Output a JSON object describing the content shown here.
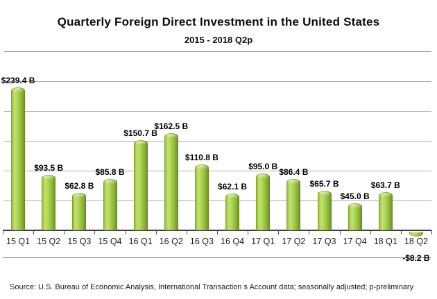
{
  "title": "Quarterly Foreign Direct Investment in the United States",
  "subtitle": "2015 - 2018 Q2p",
  "source": "Source:  U.S. Bureau of Economic Analysis, International Transaction s Account data; seasonally adjusted; p-preliminary",
  "colors": {
    "bar_main": "#9CC83E",
    "bar_highlight": "#C3E172",
    "bar_edge_dark": "#688D24",
    "gridline": "#ADADAD",
    "axis": "#3F3F3F",
    "text": "#000000"
  },
  "chart_data": {
    "type": "bar",
    "title": "Quarterly Foreign Direct Investment in the United States",
    "subtitle": "2015 - 2018 Q2p",
    "categories": [
      "15 Q1",
      "15 Q2",
      "15 Q3",
      "15 Q4",
      "16 Q1",
      "16 Q2",
      "16 Q3",
      "16 Q4",
      "17 Q1",
      "17 Q2",
      "17 Q3",
      "17 Q4",
      "18 Q1",
      "18 Q2"
    ],
    "values": [
      239.4,
      93.5,
      62.8,
      85.8,
      150.7,
      162.5,
      110.8,
      62.1,
      95.0,
      86.4,
      65.7,
      45.0,
      63.7,
      -8.2
    ],
    "labels": [
      "$239.4 B",
      "$93.5 B",
      "$62.8 B",
      "$85.8 B",
      "$150.7 B",
      "$162.5 B",
      "$110.8 B",
      "$62.1 B",
      "$95.0 B",
      "$86.4 B",
      "$65.7 B",
      "$45.0 B",
      "$63.7 B",
      "-$8.2 B"
    ],
    "xlabel": "",
    "ylabel": "",
    "units": "billions of USD",
    "ylim": [
      -20,
      300
    ],
    "gridline_interval": 50,
    "grid": true,
    "legend_position": "none",
    "bar_color": "#9CC83E"
  }
}
